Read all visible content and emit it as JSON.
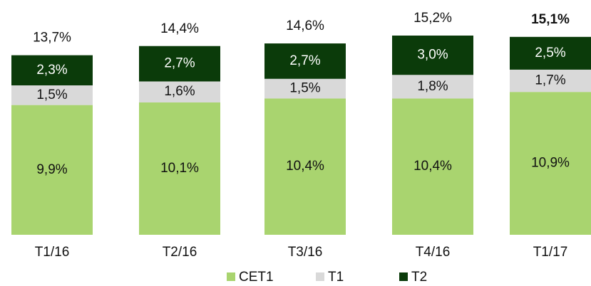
{
  "chart_data": {
    "type": "stacked_bar",
    "categories": [
      "T1/16",
      "T2/16",
      "T3/16",
      "T4/16",
      "T1/17"
    ],
    "series": [
      {
        "name": "CET1",
        "color": "#a9d46f",
        "text_color": "#111111",
        "values": [
          9.9,
          10.1,
          10.4,
          10.4,
          10.9
        ],
        "value_labels": [
          "9,9%",
          "10,1%",
          "10,4%",
          "10,4%",
          "10,9%"
        ]
      },
      {
        "name": "T1",
        "color": "#d9d9d9",
        "text_color": "#111111",
        "values": [
          1.5,
          1.6,
          1.5,
          1.8,
          1.7
        ],
        "value_labels": [
          "1,5%",
          "1,6%",
          "1,5%",
          "1,8%",
          "1,7%"
        ]
      },
      {
        "name": "T2",
        "color": "#0b3b0a",
        "text_color": "#ffffff",
        "values": [
          2.3,
          2.7,
          2.7,
          3.0,
          2.5
        ],
        "value_labels": [
          "2,3%",
          "2,7%",
          "2,7%",
          "3,0%",
          "2,5%"
        ]
      }
    ],
    "totals": [
      13.7,
      14.4,
      14.6,
      15.2,
      15.1
    ],
    "total_labels": [
      "13,7%",
      "14,4%",
      "14,6%",
      "15,2%",
      "15,1%"
    ]
  }
}
